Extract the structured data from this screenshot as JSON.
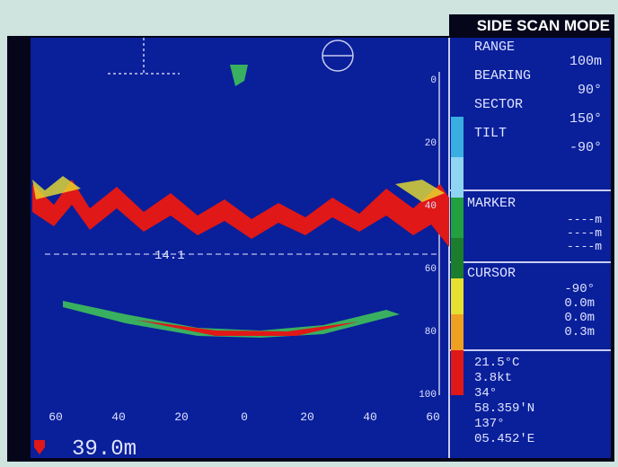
{
  "header": {
    "mode": "SIDE SCAN MODE"
  },
  "panel": {
    "settings": [
      {
        "label": "RANGE",
        "value": "100m"
      },
      {
        "label": "BEARING",
        "value": "90°"
      },
      {
        "label": "SECTOR",
        "value": "150°"
      },
      {
        "label": "TILT",
        "value": "-90°"
      }
    ],
    "marker": {
      "title": "MARKER",
      "lines": [
        "----m",
        "----m",
        "----m"
      ]
    },
    "cursor": {
      "title": "CURSOR",
      "lines": [
        "-90°",
        "0.0m",
        "0.0m",
        "0.3m"
      ]
    },
    "status": [
      "21.5°C",
      "3.8kt",
      "34°",
      "58.359'N",
      "137°",
      "05.452'E"
    ]
  },
  "depth_scale": [
    "0",
    "20",
    "40",
    "60",
    "80",
    "100"
  ],
  "horizontal_scale": [
    "60",
    "40",
    "20",
    "0",
    "20",
    "40",
    "60"
  ],
  "marker_label": "14.1",
  "depth_readout": "39.0m"
}
